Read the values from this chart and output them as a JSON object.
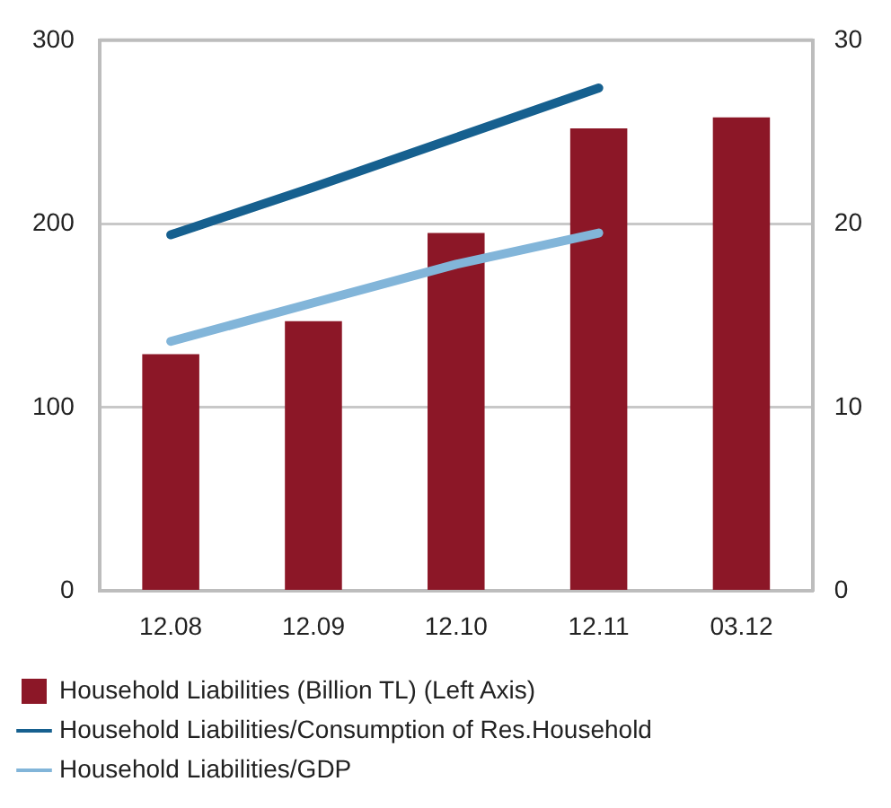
{
  "chart_data": {
    "type": "bar",
    "categories": [
      "12.08",
      "12.09",
      "12.10",
      "12.11",
      "03.12"
    ],
    "series": [
      {
        "name": "Household Liabilities (Billion TL) (Left Axis)",
        "color": "#8c1727",
        "values": [
          129,
          147,
          195,
          252,
          258
        ]
      },
      {
        "name": "Household Liabilities/Consumption of Res.Household",
        "type": "line",
        "axis": "y2",
        "color": "#16608f",
        "values": [
          19.4,
          22.0,
          24.7,
          27.4,
          null
        ]
      },
      {
        "name": "Household Liabilities/GDP",
        "type": "line",
        "axis": "y2",
        "color": "#82b5d9",
        "values": [
          13.6,
          15.7,
          17.8,
          19.5,
          null
        ]
      }
    ],
    "ylim": [
      0,
      300
    ],
    "yticks": [
      0,
      100,
      200,
      300
    ],
    "y2lim": [
      0,
      30
    ],
    "y2ticks": [
      0,
      10,
      20,
      30
    ],
    "grid": "y",
    "legend": "bottom",
    "marker": "none",
    "line_style": "solid"
  }
}
